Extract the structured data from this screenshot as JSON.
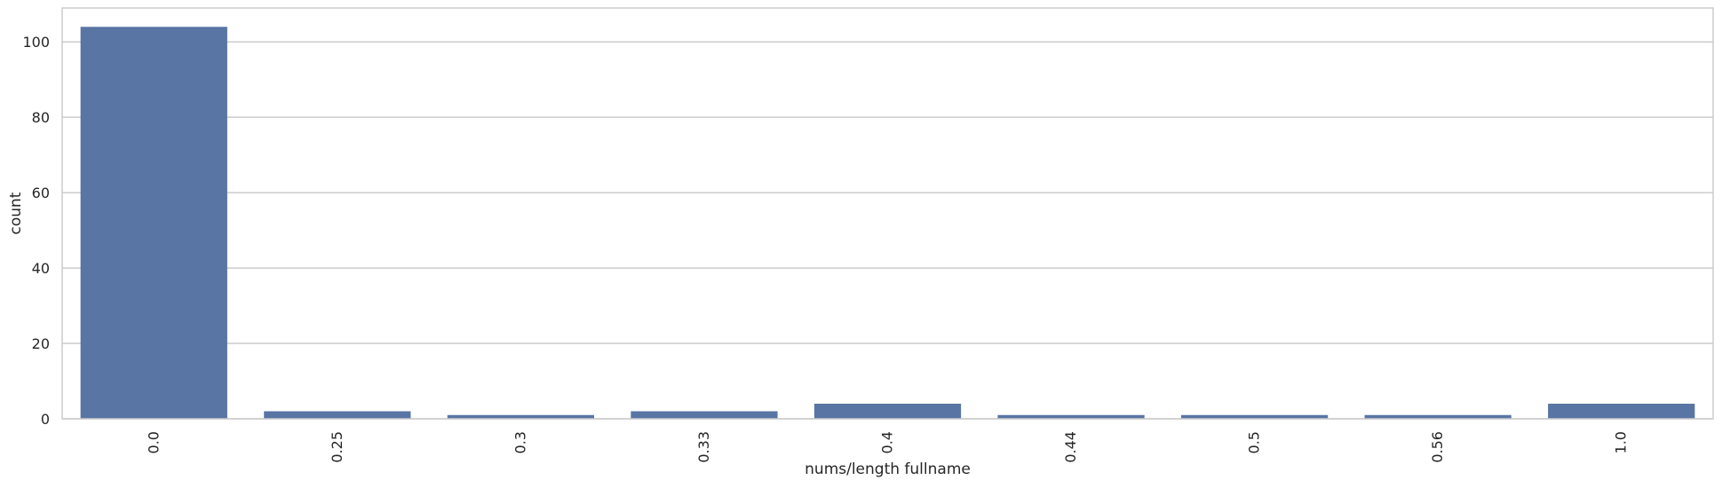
{
  "chart_data": {
    "type": "bar",
    "categories": [
      "0.0",
      "0.25",
      "0.3",
      "0.33",
      "0.4",
      "0.44",
      "0.5",
      "0.56",
      "1.0"
    ],
    "values": [
      104,
      2,
      1,
      2,
      4,
      1,
      1,
      1,
      4
    ],
    "xlabel": "nums/length fullname",
    "ylabel": "count",
    "ylim": [
      0,
      109
    ],
    "yticks": [
      0,
      20,
      40,
      60,
      80,
      100
    ],
    "grid": "horizontal",
    "bar_color": "#5975a4",
    "grid_color": "#cccccc",
    "frame_color": "#cccccc"
  }
}
